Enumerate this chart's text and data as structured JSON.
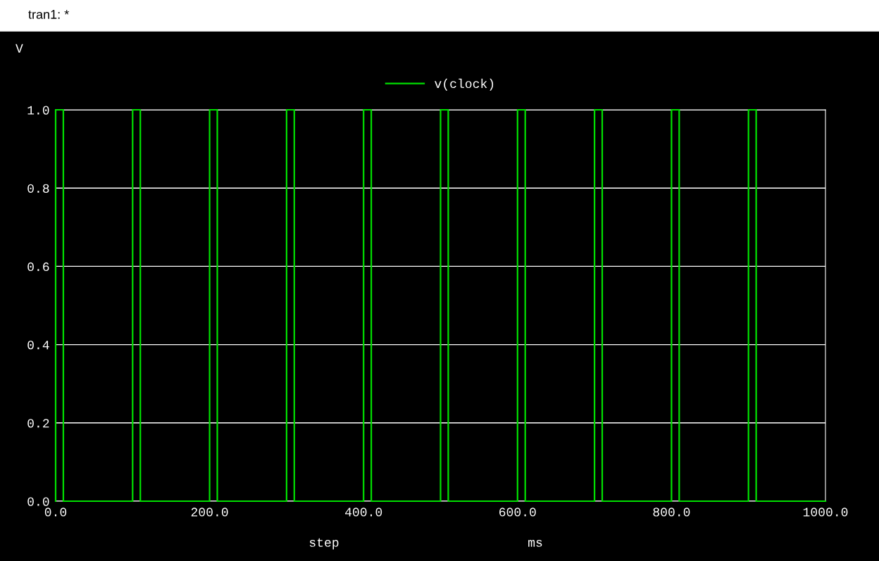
{
  "chart_data": {
    "type": "line",
    "title": "tran1: *",
    "xlabel": "step",
    "ylabel": "V",
    "annotations": [
      "ms"
    ],
    "x": [
      0,
      0,
      10,
      10,
      100,
      100,
      110,
      110,
      200,
      200,
      210,
      210,
      300,
      300,
      310,
      310,
      400,
      400,
      410,
      410,
      500,
      500,
      510,
      510,
      600,
      600,
      610,
      610,
      700,
      700,
      710,
      710,
      800,
      800,
      810,
      810,
      900,
      900,
      910,
      910,
      1000
    ],
    "series": [
      {
        "name": "v(clock)",
        "color": "#00e000",
        "values": [
          0,
          1,
          1,
          0,
          0,
          1,
          1,
          0,
          0,
          1,
          1,
          0,
          0,
          1,
          1,
          0,
          0,
          1,
          1,
          0,
          0,
          1,
          1,
          0,
          0,
          1,
          1,
          0,
          0,
          1,
          1,
          0,
          0,
          1,
          1,
          0,
          0,
          1,
          1,
          0,
          0
        ]
      }
    ],
    "xlim": [
      0,
      1000
    ],
    "xticks": [
      {
        "value": 0,
        "label": "0.0"
      },
      {
        "value": 200,
        "label": "200.0"
      },
      {
        "value": 400,
        "label": "400.0"
      },
      {
        "value": 600,
        "label": "600.0"
      },
      {
        "value": 800,
        "label": "800.0"
      },
      {
        "value": 1000,
        "label": "1000.0"
      }
    ],
    "ylim": [
      0,
      1
    ],
    "yticks": [
      {
        "value": 0,
        "label": "0.0"
      },
      {
        "value": 0.2,
        "label": "0.2"
      },
      {
        "value": 0.4,
        "label": "0.4"
      },
      {
        "value": 0.6,
        "label": "0.6"
      },
      {
        "value": 0.8,
        "label": "0.8"
      },
      {
        "value": 1.0,
        "label": "1.0"
      }
    ],
    "grid": "y",
    "legend": "top",
    "line_style": "solid",
    "marker": "none"
  }
}
